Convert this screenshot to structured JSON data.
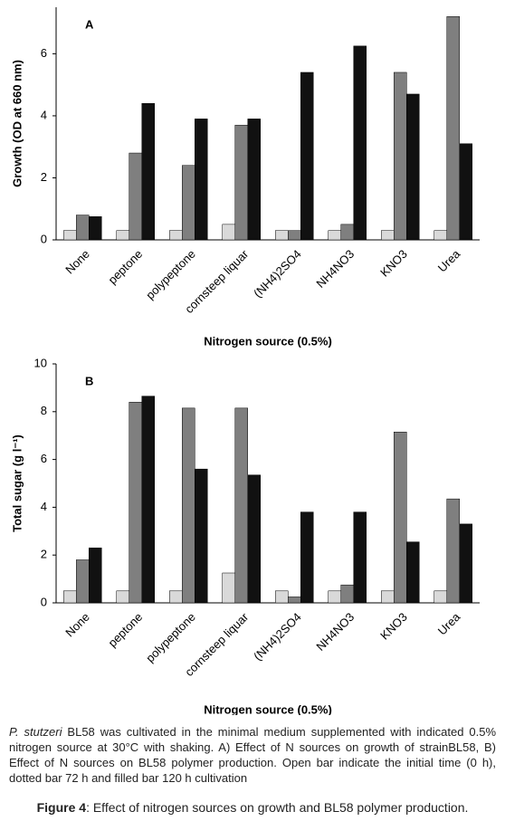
{
  "chart_data": [
    {
      "type": "bar",
      "panel": "A",
      "y_label": "Growth (OD at 660 nm)",
      "x_label": "Nitrogen source (0.5%)",
      "categories": [
        "None",
        "peptone",
        "polypeptone",
        "cornsteep liquar",
        "(NH4)2SO4",
        "NH4NO3",
        "KNO3",
        "Urea"
      ],
      "series": [
        {
          "color": "#d9d9d9",
          "values": [
            0.3,
            0.3,
            0.3,
            0.5,
            0.3,
            0.3,
            0.3,
            0.3
          ]
        },
        {
          "color": "#7f7f7f",
          "values": [
            0.8,
            2.8,
            2.4,
            3.7,
            0.3,
            0.5,
            5.4,
            7.2
          ]
        },
        {
          "color": "#111111",
          "values": [
            0.75,
            4.4,
            3.9,
            3.9,
            5.4,
            6.25,
            4.7,
            3.1
          ]
        }
      ],
      "ylim": [
        0,
        7.5
      ],
      "yticks": [
        0,
        2,
        4,
        6
      ]
    },
    {
      "type": "bar",
      "panel": "B",
      "y_label": "Total sugar (g l⁻¹)",
      "x_label": "Nitrogen source (0.5%)",
      "categories": [
        "None",
        "peptone",
        "polypeptone",
        "cornsteep liquar",
        "(NH4)2SO4",
        "NH4NO3",
        "KNO3",
        "Urea"
      ],
      "series": [
        {
          "color": "#d9d9d9",
          "values": [
            0.5,
            0.5,
            0.5,
            1.25,
            0.5,
            0.5,
            0.5,
            0.5
          ]
        },
        {
          "color": "#7f7f7f",
          "values": [
            1.8,
            8.4,
            8.15,
            8.15,
            0.25,
            0.75,
            7.15,
            4.35
          ]
        },
        {
          "color": "#111111",
          "values": [
            2.3,
            8.65,
            5.6,
            5.35,
            3.8,
            3.8,
            2.55,
            3.3
          ]
        }
      ],
      "ylim": [
        0,
        10
      ],
      "yticks": [
        0,
        2,
        4,
        6,
        8,
        10
      ]
    }
  ],
  "caption": {
    "species": "P. stutzeri",
    "text": " BL58 was cultivated in the minimal medium supplemented with indicated 0.5% nitrogen source at 30°C with shaking. A) Effect of N sources on growth of strainBL58, B) Effect of N sources on BL58 polymer production. Open bar indicate the initial time (0 h), dotted bar 72 h and filled bar 120 h cultivation",
    "figure_label": "Figure 4",
    "figure_title": ": Effect of nitrogen sources on growth and BL58 polymer production."
  }
}
